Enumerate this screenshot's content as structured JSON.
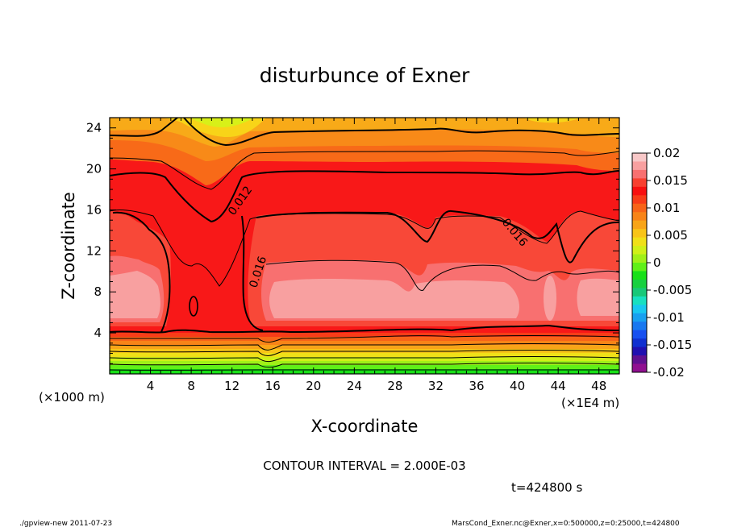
{
  "chart_data": {
    "type": "heatmap",
    "title": "disturbunce of Exner",
    "xlabel": "X-coordinate",
    "ylabel": "Z-coordinate",
    "x_unit_left": "(×1000 m)",
    "x_unit_right": "(×1E4 m)",
    "xlim": [
      0,
      50
    ],
    "ylim": [
      0,
      25
    ],
    "x_ticks": [
      4,
      8,
      12,
      16,
      20,
      24,
      28,
      32,
      36,
      40,
      44,
      48
    ],
    "y_ticks": [
      4,
      8,
      12,
      16,
      20,
      24
    ],
    "x_tick_labels": [
      "4",
      "8",
      "12",
      "16",
      "20",
      "24",
      "28",
      "32",
      "36",
      "40",
      "44",
      "48"
    ],
    "y_tick_labels": [
      "4",
      "8",
      "12",
      "16",
      "20",
      "24"
    ],
    "colorbar": {
      "range": [
        -0.02,
        0.02
      ],
      "tick_values": [
        0.02,
        0.015,
        0.01,
        0.005,
        0,
        -0.005,
        -0.01,
        -0.015,
        -0.02
      ],
      "tick_labels": [
        "0.02",
        "0.015",
        "0.01",
        "0.005",
        "0",
        "-0.005",
        "-0.01",
        "-0.015",
        "-0.02"
      ],
      "colors": [
        "#f8c8c8",
        "#f8a0a0",
        "#f87070",
        "#f84030",
        "#f81010",
        "#f83c18",
        "#f86418",
        "#f88418",
        "#f8a418",
        "#f8c418",
        "#f0e018",
        "#d0f018",
        "#a0f018",
        "#60f018",
        "#18e018",
        "#18d040",
        "#18c878",
        "#18e0c0",
        "#18c8f0",
        "#18a0f0",
        "#1878f0",
        "#1850f0",
        "#1030d0",
        "#2010b0",
        "#601090",
        "#901090"
      ]
    },
    "contour_labels": [
      "0.012",
      "0.016",
      "0.016"
    ],
    "contour_interval_text": "CONTOUR INTERVAL = 2.000E-03",
    "time_text": "t=424800 s"
  },
  "footer": {
    "left": "./gpview-new   2011-07-23",
    "right": "MarsCond_Exner.nc@Exner,x=0:500000,z=0:25000,t=424800"
  }
}
